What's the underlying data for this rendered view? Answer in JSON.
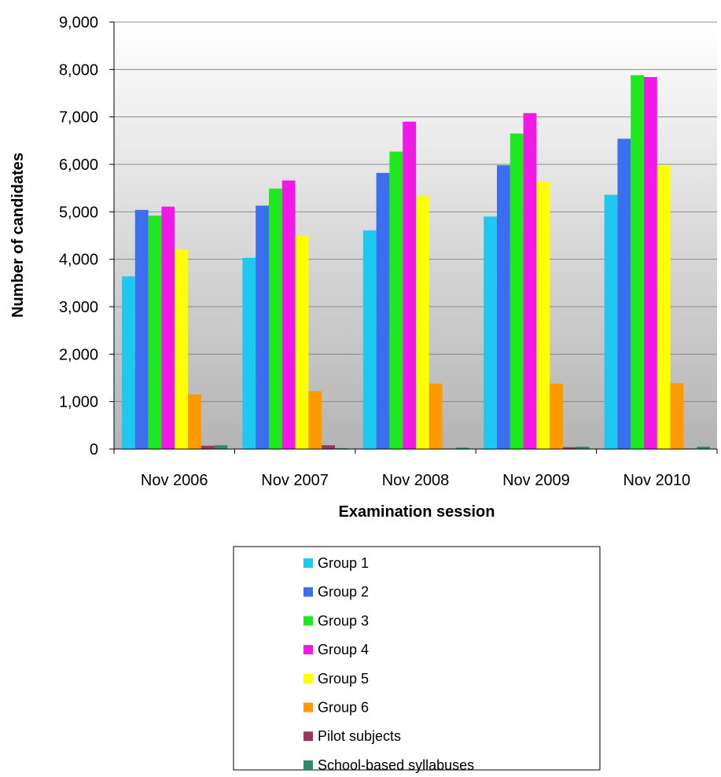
{
  "chart_data": {
    "type": "bar",
    "title": "",
    "xlabel": "Examination session",
    "ylabel": "Number of candidates",
    "ylim": [
      0,
      9000
    ],
    "yticks": [
      "0",
      "1,000",
      "2,000",
      "3,000",
      "4,000",
      "5,000",
      "6,000",
      "7,000",
      "8,000",
      "9,000"
    ],
    "ytick_values": [
      0,
      1000,
      2000,
      3000,
      4000,
      5000,
      6000,
      7000,
      8000,
      9000
    ],
    "grid": true,
    "legend_position": "bottom",
    "categories": [
      "Nov 2006",
      "Nov 2007",
      "Nov 2008",
      "Nov 2009",
      "Nov 2010"
    ],
    "series": [
      {
        "name": "Group 1",
        "color": "#1ec8f0",
        "values": [
          3640,
          4030,
          4610,
          4900,
          5360
        ]
      },
      {
        "name": "Group 2",
        "color": "#3c6ef0",
        "values": [
          5040,
          5130,
          5820,
          5980,
          6540
        ]
      },
      {
        "name": "Group 3",
        "color": "#1ee81e",
        "values": [
          4920,
          5490,
          6270,
          6650,
          7880
        ]
      },
      {
        "name": "Group 4",
        "color": "#f019e6",
        "values": [
          5110,
          5660,
          6900,
          7080,
          7840
        ]
      },
      {
        "name": "Group 5",
        "color": "#ffff00",
        "values": [
          4210,
          4500,
          5330,
          5640,
          5970
        ]
      },
      {
        "name": "Group 6",
        "color": "#ff9900",
        "values": [
          1150,
          1220,
          1380,
          1380,
          1390
        ]
      },
      {
        "name": "Pilot subjects",
        "color": "#96375f",
        "values": [
          70,
          80,
          10,
          40,
          10
        ]
      },
      {
        "name": "School-based syllabuses",
        "color": "#2e8b6e",
        "values": [
          80,
          20,
          30,
          50,
          50
        ]
      }
    ]
  }
}
